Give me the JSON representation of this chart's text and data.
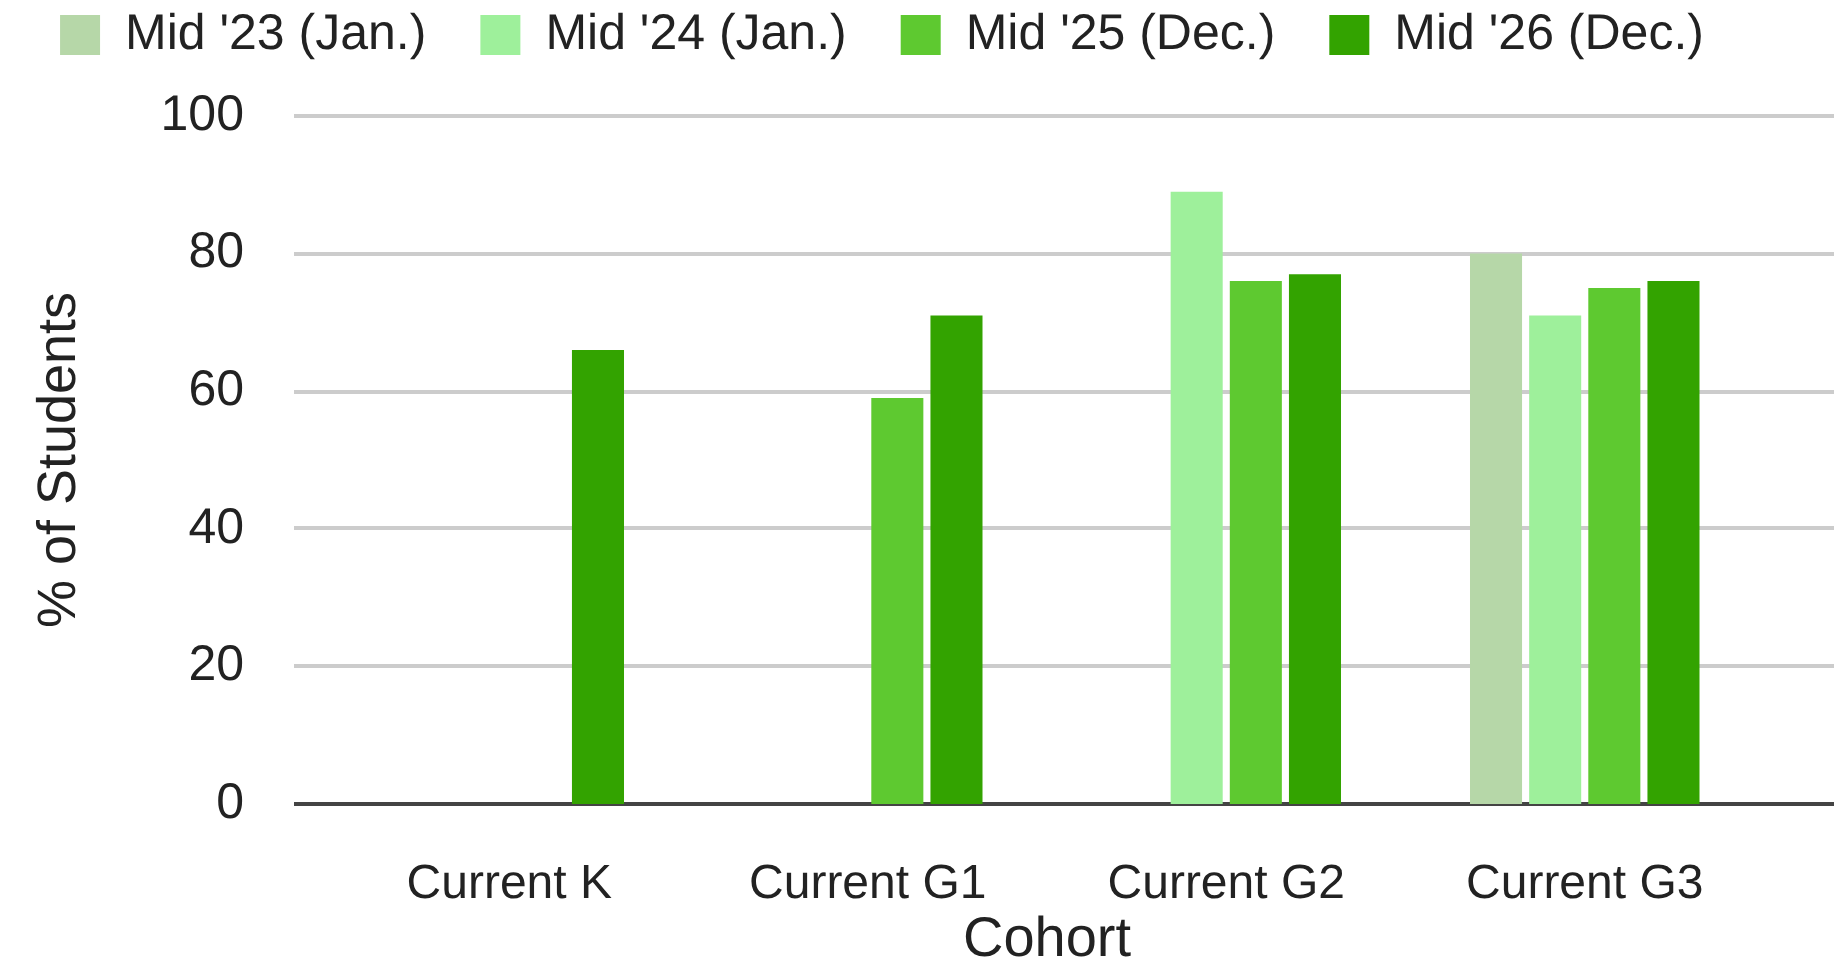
{
  "chart_data": {
    "type": "bar",
    "categories": [
      "Current K",
      "Current G1",
      "Current G2",
      "Current G3"
    ],
    "series": [
      {
        "name": "Mid '23 (Jan.)",
        "color": "#b6d7a8",
        "values": [
          null,
          null,
          null,
          80
        ]
      },
      {
        "name": "Mid '24 (Jan.)",
        "color": "#9ef09b",
        "values": [
          null,
          null,
          89,
          71
        ]
      },
      {
        "name": "Mid '25 (Dec.)",
        "color": "#5ec930",
        "values": [
          null,
          59,
          76,
          75
        ]
      },
      {
        "name": "Mid '26 (Dec.)",
        "color": "#33a300",
        "values": [
          66,
          71,
          77,
          76
        ]
      }
    ],
    "xlabel": "Cohort",
    "ylabel": "% of Students",
    "ylim": [
      0,
      100
    ],
    "yticks": [
      0,
      20,
      40,
      60,
      80,
      100
    ],
    "grid": "y",
    "legend": "top"
  }
}
